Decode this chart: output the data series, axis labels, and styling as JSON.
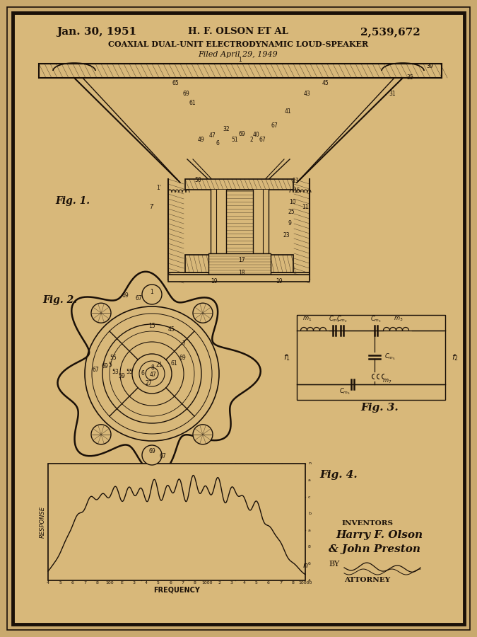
{
  "bg_outer": "#c9a96e",
  "bg_paper": "#d8b87a",
  "border_color": "#1a1008",
  "text_color": "#1a1008",
  "title_date": "Jan. 30, 1951",
  "title_inventor": "H. F. OLSON ET AL",
  "title_patent": "2,539,672",
  "title_main": "COAXIAL DUAL-UNIT ELECTRODYNAMIC LOUD-SPEAKER",
  "title_filed": "Filed April 29, 1949",
  "fig1_label": "Fig. 1.",
  "fig2_label": "Fig. 2.",
  "fig3_label": "Fig. 3.",
  "fig4_label": "Fig. 4.",
  "inventors_label": "INVENTORS",
  "inventor1": "Harry F. Olson",
  "inventor2": "& John Preston",
  "attorney_label": "ATTORNEY",
  "by_label": "BY",
  "freq_label": "FREQUENCY",
  "response_label": "RESPONSE"
}
